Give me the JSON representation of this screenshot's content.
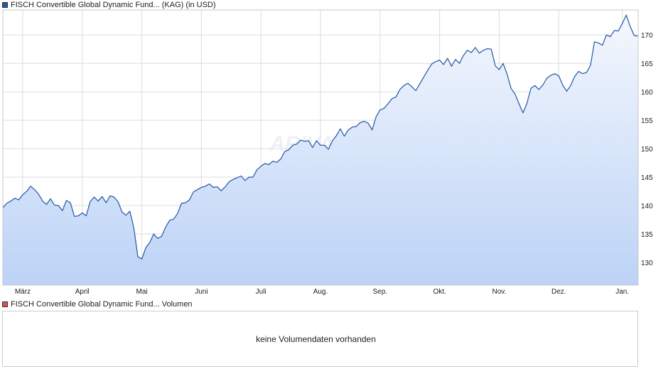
{
  "legend_top": {
    "swatch_color": "#2357a8",
    "text": "FISCH Convertible Global Dynamic Fund... (KAG) (in USD)"
  },
  "legend_bottom": {
    "swatch_color": "#d9534f",
    "text": "FISCH Convertible Global Dynamic Fund... Volumen"
  },
  "watermark_text": "ARIVA.DE",
  "volume": {
    "message": "keine Volumendaten vorhanden"
  },
  "colors": {
    "line": "#2357a8",
    "fill_top": "#f4f7fd",
    "fill_bottom": "#bcd3f6",
    "grid": "#dcdcdc"
  },
  "chart_data": {
    "type": "area",
    "title": "FISCH Convertible Global Dynamic Fund... (KAG) (in USD)",
    "xlabel": "",
    "ylabel": "",
    "x_ticks": [
      "März",
      "April",
      "Mai",
      "Juni",
      "Juli",
      "Aug.",
      "Sep.",
      "Okt.",
      "Nov.",
      "Dez.",
      "Jan."
    ],
    "y_ticks": [
      130,
      135,
      140,
      145,
      150,
      155,
      160,
      165,
      170
    ],
    "ylim": [
      126,
      174.4
    ],
    "y_axis_side": "right",
    "grid": true,
    "series": [
      {
        "name": "FISCH Convertible Global Dynamic Fund... (KAG) (in USD)",
        "points": [
          [
            "Feb 20",
            139.6
          ],
          [
            "Feb 22",
            140.4
          ],
          [
            "Feb 24",
            140.8
          ],
          [
            "Feb 26",
            141.3
          ],
          [
            "Feb 28",
            141.0
          ],
          [
            "Mar 2",
            141.9
          ],
          [
            "Mar 4",
            142.5
          ],
          [
            "Mar 6",
            143.4
          ],
          [
            "Mar 8",
            142.8
          ],
          [
            "Mar 10",
            142.0
          ],
          [
            "Mar 12",
            140.8
          ],
          [
            "Mar 14",
            140.2
          ],
          [
            "Mar 16",
            141.2
          ],
          [
            "Mar 18",
            140.1
          ],
          [
            "Mar 20",
            140.0
          ],
          [
            "Mar 22",
            139.1
          ],
          [
            "Mar 24",
            140.9
          ],
          [
            "Mar 26",
            140.5
          ],
          [
            "Mar 28",
            138.1
          ],
          [
            "Mar 30",
            138.2
          ],
          [
            "Apr 1",
            138.7
          ],
          [
            "Apr 3",
            138.2
          ],
          [
            "Apr 5",
            140.7
          ],
          [
            "Apr 7",
            141.5
          ],
          [
            "Apr 9",
            140.8
          ],
          [
            "Apr 11",
            141.6
          ],
          [
            "Apr 13",
            140.5
          ],
          [
            "Apr 15",
            141.7
          ],
          [
            "Apr 17",
            141.5
          ],
          [
            "Apr 19",
            140.7
          ],
          [
            "Apr 21",
            138.9
          ],
          [
            "Apr 23",
            138.3
          ],
          [
            "Apr 25",
            139.0
          ],
          [
            "Apr 27",
            136.0
          ],
          [
            "Apr 29",
            131.0
          ],
          [
            "May 1",
            130.6
          ],
          [
            "May 3",
            132.6
          ],
          [
            "May 5",
            133.5
          ],
          [
            "May 7",
            135.0
          ],
          [
            "May 9",
            134.2
          ],
          [
            "May 11",
            134.6
          ],
          [
            "May 13",
            136.2
          ],
          [
            "May 15",
            137.4
          ],
          [
            "May 17",
            137.6
          ],
          [
            "May 19",
            138.6
          ],
          [
            "May 21",
            140.4
          ],
          [
            "May 23",
            140.5
          ],
          [
            "May 25",
            141.0
          ],
          [
            "May 27",
            142.4
          ],
          [
            "May 29",
            142.8
          ],
          [
            "Jun 1",
            143.2
          ],
          [
            "Jun 3",
            143.4
          ],
          [
            "Jun 5",
            143.8
          ],
          [
            "Jun 7",
            143.2
          ],
          [
            "Jun 9",
            143.3
          ],
          [
            "Jun 11",
            142.6
          ],
          [
            "Jun 13",
            143.3
          ],
          [
            "Jun 15",
            144.2
          ],
          [
            "Jun 17",
            144.6
          ],
          [
            "Jun 19",
            144.9
          ],
          [
            "Jun 21",
            145.2
          ],
          [
            "Jun 23",
            144.4
          ],
          [
            "Jun 25",
            145.0
          ],
          [
            "Jun 27",
            145.0
          ],
          [
            "Jun 29",
            146.3
          ],
          [
            "Jul 1",
            146.9
          ],
          [
            "Jul 3",
            147.4
          ],
          [
            "Jul 5",
            147.2
          ],
          [
            "Jul 7",
            147.8
          ],
          [
            "Jul 9",
            147.6
          ],
          [
            "Jul 11",
            148.2
          ],
          [
            "Jul 13",
            149.5
          ],
          [
            "Jul 15",
            149.8
          ],
          [
            "Jul 17",
            150.6
          ],
          [
            "Jul 19",
            150.8
          ],
          [
            "Jul 21",
            151.5
          ],
          [
            "Jul 23",
            151.3
          ],
          [
            "Jul 25",
            151.4
          ],
          [
            "Jul 27",
            150.2
          ],
          [
            "Jul 29",
            151.4
          ],
          [
            "Aug 1",
            150.6
          ],
          [
            "Aug 3",
            150.6
          ],
          [
            "Aug 5",
            149.9
          ],
          [
            "Aug 7",
            151.4
          ],
          [
            "Aug 9",
            152.3
          ],
          [
            "Aug 11",
            153.5
          ],
          [
            "Aug 13",
            152.2
          ],
          [
            "Aug 15",
            153.3
          ],
          [
            "Aug 17",
            153.8
          ],
          [
            "Aug 19",
            153.9
          ],
          [
            "Aug 21",
            154.6
          ],
          [
            "Aug 23",
            154.8
          ],
          [
            "Aug 25",
            154.5
          ],
          [
            "Aug 27",
            153.3
          ],
          [
            "Aug 29",
            155.6
          ],
          [
            "Sep 1",
            156.8
          ],
          [
            "Sep 3",
            157.1
          ],
          [
            "Sep 5",
            157.9
          ],
          [
            "Sep 7",
            158.8
          ],
          [
            "Sep 9",
            159.1
          ],
          [
            "Sep 11",
            160.4
          ],
          [
            "Sep 13",
            161.1
          ],
          [
            "Sep 15",
            161.5
          ],
          [
            "Sep 17",
            160.9
          ],
          [
            "Sep 19",
            160.2
          ],
          [
            "Sep 21",
            161.4
          ],
          [
            "Sep 23",
            162.6
          ],
          [
            "Sep 25",
            163.8
          ],
          [
            "Sep 27",
            164.9
          ],
          [
            "Sep 29",
            165.3
          ],
          [
            "Oct 1",
            165.6
          ],
          [
            "Oct 3",
            164.8
          ],
          [
            "Oct 5",
            165.9
          ],
          [
            "Oct 7",
            164.5
          ],
          [
            "Oct 9",
            165.7
          ],
          [
            "Oct 11",
            165.0
          ],
          [
            "Oct 13",
            166.4
          ],
          [
            "Oct 15",
            167.3
          ],
          [
            "Oct 17",
            166.9
          ],
          [
            "Oct 19",
            167.8
          ],
          [
            "Oct 21",
            166.8
          ],
          [
            "Oct 23",
            167.3
          ],
          [
            "Oct 25",
            167.6
          ],
          [
            "Oct 27",
            167.5
          ],
          [
            "Oct 29",
            164.6
          ],
          [
            "Nov 1",
            163.9
          ],
          [
            "Nov 3",
            165.0
          ],
          [
            "Nov 5",
            163.1
          ],
          [
            "Nov 7",
            160.6
          ],
          [
            "Nov 9",
            159.6
          ],
          [
            "Nov 11",
            157.9
          ],
          [
            "Nov 13",
            156.3
          ],
          [
            "Nov 15",
            158.0
          ],
          [
            "Nov 17",
            160.6
          ],
          [
            "Nov 19",
            161.1
          ],
          [
            "Nov 21",
            160.4
          ],
          [
            "Nov 23",
            161.2
          ],
          [
            "Nov 25",
            162.4
          ],
          [
            "Nov 27",
            162.9
          ],
          [
            "Nov 29",
            163.2
          ],
          [
            "Dec 1",
            162.8
          ],
          [
            "Dec 3",
            161.2
          ],
          [
            "Dec 5",
            160.1
          ],
          [
            "Dec 7",
            161.1
          ],
          [
            "Dec 9",
            162.7
          ],
          [
            "Dec 11",
            163.6
          ],
          [
            "Dec 13",
            163.2
          ],
          [
            "Dec 15",
            163.4
          ],
          [
            "Dec 17",
            164.7
          ],
          [
            "Dec 19",
            168.8
          ],
          [
            "Dec 21",
            168.6
          ],
          [
            "Dec 23",
            168.2
          ],
          [
            "Dec 25",
            170.0
          ],
          [
            "Dec 27",
            169.7
          ],
          [
            "Dec 29",
            170.8
          ],
          [
            "Dec 31",
            170.7
          ],
          [
            "Jan 2",
            172.0
          ],
          [
            "Jan 4",
            173.5
          ],
          [
            "Jan 6",
            171.5
          ],
          [
            "Jan 8",
            169.9
          ],
          [
            "Jan 10",
            169.8
          ]
        ]
      }
    ]
  }
}
